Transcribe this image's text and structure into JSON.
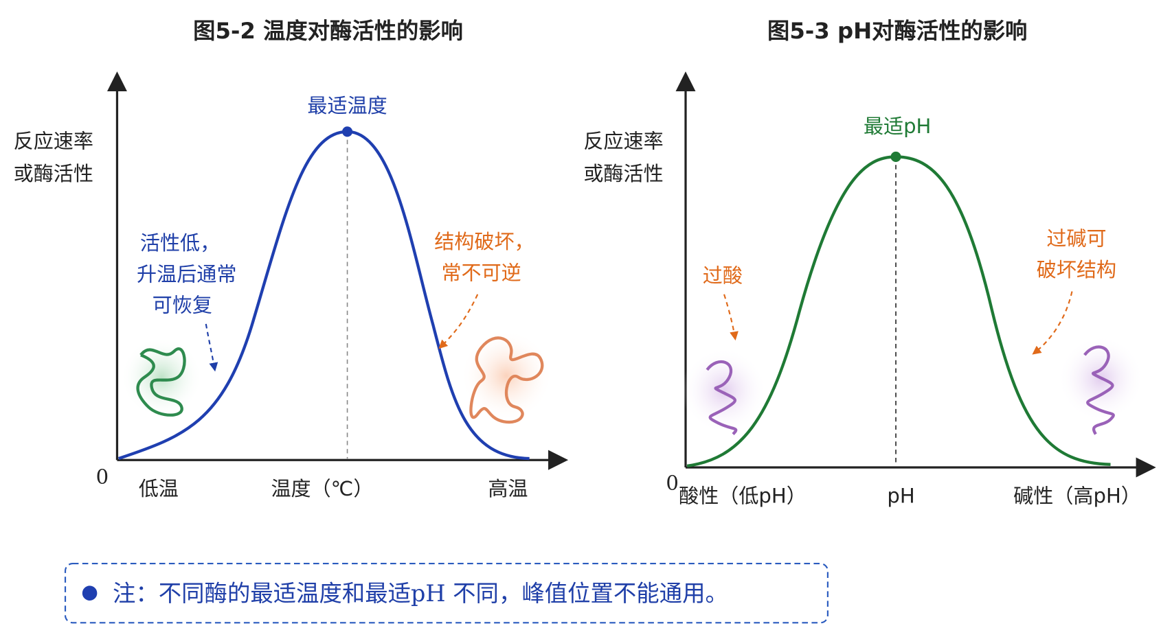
{
  "panels": [
    {
      "title": "图5-2  温度对酶活性的影响",
      "y_label": [
        "反应速率",
        "或酶活性"
      ],
      "origin": "0",
      "x_labels": [
        "低温",
        "温度（℃）",
        "高温"
      ],
      "peak_label": "最适温度",
      "left_note": [
        "活性低，",
        "升温后通常",
        "可恢复"
      ],
      "right_note": [
        "结构破坏，",
        "常不可逆"
      ]
    },
    {
      "title": "图5-3  pH对酶活性的影响",
      "y_label": [
        "反应速率",
        "或酶活性"
      ],
      "origin": "0",
      "x_labels": [
        "酸性（低pH）",
        "pH",
        "碱性（高pH）"
      ],
      "peak_label": "最适pH",
      "left_note": [
        "过酸"
      ],
      "right_note": [
        "过碱可",
        "破坏结构"
      ]
    }
  ],
  "note": "注：不同酶的最适温度和最适pH 不同，峰值位置不能通用。"
}
